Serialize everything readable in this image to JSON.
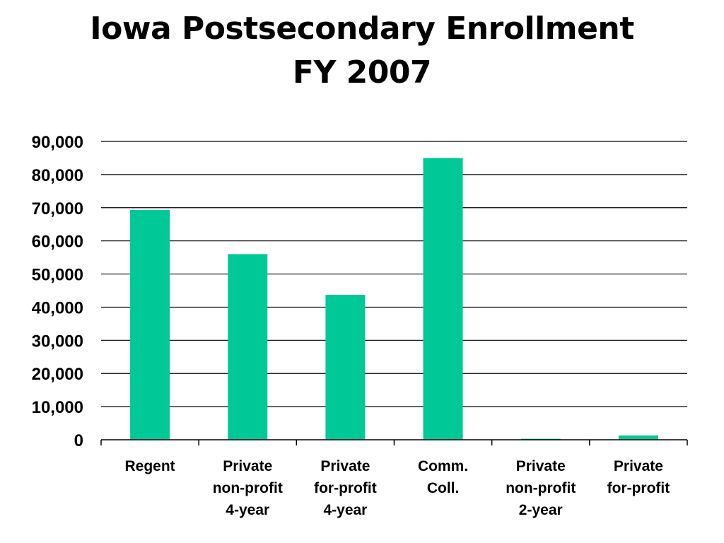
{
  "chart_data": {
    "type": "bar",
    "title_lines": [
      "Iowa Postsecondary Enrollment",
      "FY 2007"
    ],
    "categories": [
      [
        "Regent"
      ],
      [
        "Private",
        "non-profit",
        "4-year"
      ],
      [
        "Private",
        "for-profit",
        "4-year"
      ],
      [
        "Comm.",
        "Coll."
      ],
      [
        "Private",
        "non-profit",
        "2-year"
      ],
      [
        "Private",
        "for-profit"
      ]
    ],
    "values": [
      69300,
      56000,
      43700,
      85000,
      300,
      1300
    ],
    "ylim": [
      0,
      90000
    ],
    "yticks": [
      0,
      10000,
      20000,
      30000,
      40000,
      50000,
      60000,
      70000,
      80000,
      90000
    ],
    "ytick_labels": [
      "0",
      "10,000",
      "20,000",
      "30,000",
      "40,000",
      "50,000",
      "60,000",
      "70,000",
      "80,000",
      "90,000"
    ],
    "xlabel": "",
    "ylabel": "",
    "grid": true,
    "legend": "none",
    "bar_color": "#00c896",
    "grid_color": "#000000"
  }
}
